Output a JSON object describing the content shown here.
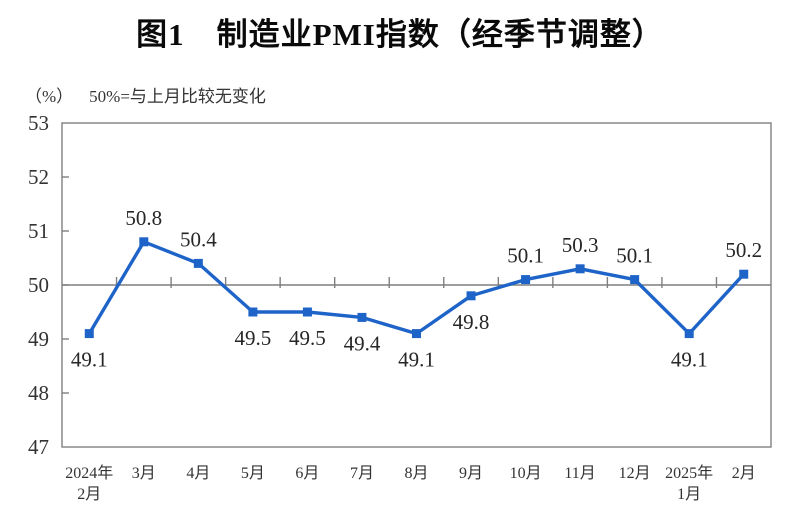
{
  "title": "图1　制造业PMI指数（经季节调整）",
  "subtitle": {
    "unit": "（%）",
    "note": "50%=与上月比较无变化"
  },
  "chart_data": {
    "type": "line",
    "title": "图1 制造业PMI指数（经季节调整）",
    "unit": "%",
    "categories": [
      "2024年2月",
      "3月",
      "4月",
      "5月",
      "6月",
      "7月",
      "8月",
      "9月",
      "10月",
      "11月",
      "12月",
      "2025年1月",
      "2月"
    ],
    "category_lines": [
      [
        "2024年",
        "2月"
      ],
      [
        "3月"
      ],
      [
        "4月"
      ],
      [
        "5月"
      ],
      [
        "6月"
      ],
      [
        "7月"
      ],
      [
        "8月"
      ],
      [
        "9月"
      ],
      [
        "10月"
      ],
      [
        "11月"
      ],
      [
        "12月"
      ],
      [
        "2025年",
        "1月"
      ],
      [
        "2月"
      ]
    ],
    "series_name": "制造业PMI指数",
    "values": [
      49.1,
      50.8,
      50.4,
      49.5,
      49.5,
      49.4,
      49.1,
      49.8,
      50.1,
      50.3,
      50.1,
      49.1,
      50.2
    ],
    "label_positions": [
      "below",
      "above",
      "above",
      "below",
      "below",
      "below",
      "below",
      "below",
      "above",
      "above",
      "above",
      "below",
      "above"
    ],
    "ylim": [
      47,
      53
    ],
    "yticks": [
      47,
      48,
      49,
      50,
      51,
      52,
      53
    ],
    "reference_line": 50,
    "grid": false,
    "legend": null,
    "marker": "square",
    "colors": {
      "line": "#1e64c8",
      "axis": "#7f7f7f",
      "label": "#262626",
      "tick_label": "#333333"
    }
  }
}
